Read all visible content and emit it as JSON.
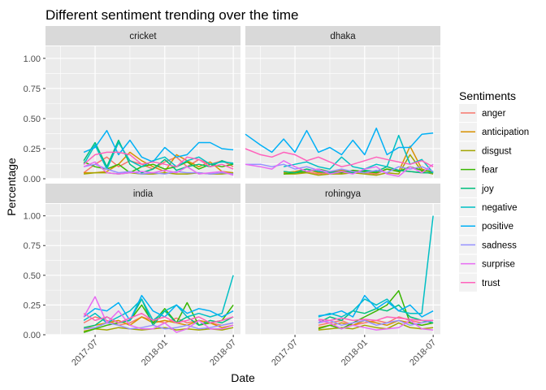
{
  "chart_data": {
    "type": "line",
    "title": "Different sentiment trending over the time",
    "xlabel": "Date",
    "ylabel": "Percentage",
    "legend_title": "Sentiments",
    "legend_position": "right",
    "grid": true,
    "ylim": [
      0,
      1.1
    ],
    "xlim": [
      "2017-02-20",
      "2018-07-20"
    ],
    "x_ticks": [
      "2017-07-01",
      "2018-01-01",
      "2018-07-01"
    ],
    "x_tick_labels": [
      "2017-07",
      "2018-01",
      "2018-07"
    ],
    "y_ticks": [
      0,
      0.25,
      0.5,
      0.75,
      1
    ],
    "y_tick_labels": [
      "0.00",
      "0.25",
      "0.50",
      "0.75",
      "1.00"
    ],
    "series_colors": {
      "anger": "#F8766D",
      "anticipation": "#D89000",
      "disgust": "#A3A500",
      "fear": "#39B600",
      "joy": "#00BF7D",
      "negative": "#00BFC4",
      "positive": "#00B0F6",
      "sadness": "#9590FF",
      "surprise": "#E76BF3",
      "trust": "#FF62BC"
    },
    "facets": [
      {
        "name": "cricket",
        "x": [
          "2017-06-01",
          "2017-07-01",
          "2017-08-01",
          "2017-09-01",
          "2017-10-01",
          "2017-11-01",
          "2017-12-01",
          "2018-01-01",
          "2018-02-01",
          "2018-03-01",
          "2018-04-01",
          "2018-05-01",
          "2018-06-01",
          "2018-07-01"
        ],
        "series": [
          {
            "name": "anger",
            "values": [
              0.05,
              0.12,
              0.18,
              0.1,
              0.15,
              0.12,
              0.08,
              0.14,
              0.18,
              0.1,
              0.16,
              0.12,
              0.15,
              0.1
            ]
          },
          {
            "name": "anticipation",
            "values": [
              0.05,
              0.05,
              0.06,
              0.12,
              0.22,
              0.15,
              0.1,
              0.06,
              0.2,
              0.15,
              0.1,
              0.14,
              0.06,
              0.05
            ]
          },
          {
            "name": "disgust",
            "values": [
              0.04,
              0.05,
              0.05,
              0.04,
              0.05,
              0.04,
              0.04,
              0.05,
              0.04,
              0.04,
              0.05,
              0.04,
              0.04,
              0.05
            ]
          },
          {
            "name": "fear",
            "values": [
              0.14,
              0.1,
              0.08,
              0.12,
              0.05,
              0.1,
              0.12,
              0.08,
              0.1,
              0.14,
              0.08,
              0.12,
              0.1,
              0.12
            ]
          },
          {
            "name": "joy",
            "values": [
              0.15,
              0.3,
              0.1,
              0.32,
              0.12,
              0.05,
              0.08,
              0.16,
              0.07,
              0.1,
              0.12,
              0.1,
              0.15,
              0.12
            ]
          },
          {
            "name": "negative",
            "values": [
              0.12,
              0.28,
              0.08,
              0.3,
              0.15,
              0.1,
              0.15,
              0.18,
              0.1,
              0.15,
              0.18,
              0.12,
              0.14,
              0.13
            ]
          },
          {
            "name": "positive",
            "values": [
              0.22,
              0.26,
              0.4,
              0.2,
              0.32,
              0.18,
              0.14,
              0.26,
              0.18,
              0.2,
              0.3,
              0.3,
              0.25,
              0.24
            ]
          },
          {
            "name": "sadness",
            "values": [
              0.1,
              0.12,
              0.08,
              0.05,
              0.06,
              0.04,
              0.05,
              0.04,
              0.06,
              0.05,
              0.05,
              0.04,
              0.05,
              0.04
            ]
          },
          {
            "name": "surprise",
            "values": [
              0.1,
              0.14,
              0.05,
              0.04,
              0.05,
              0.06,
              0.05,
              0.07,
              0.05,
              0.1,
              0.04,
              0.05,
              0.06,
              0.03
            ]
          },
          {
            "name": "trust",
            "values": [
              0.12,
              0.2,
              0.22,
              0.22,
              0.2,
              0.12,
              0.14,
              0.12,
              0.1,
              0.18,
              0.16,
              0.1,
              0.12,
              0.08
            ]
          }
        ]
      },
      {
        "name": "dhaka",
        "x": [
          "2017-02-20",
          "2017-04-01",
          "2017-05-01",
          "2017-06-01",
          "2017-07-01",
          "2017-08-01",
          "2017-09-01",
          "2017-10-01",
          "2017-11-01",
          "2017-12-01",
          "2018-01-01",
          "2018-02-01",
          "2018-03-01",
          "2018-04-01",
          "2018-05-01",
          "2018-06-01",
          "2018-07-01"
        ],
        "series": [
          {
            "name": "anger",
            "values": [
              null,
              null,
              null,
              0.06,
              0.05,
              0.06,
              0.04,
              0.05,
              0.05,
              0.06,
              0.05,
              0.04,
              0.08,
              0.07,
              0.06,
              0.05,
              0.05
            ]
          },
          {
            "name": "anticipation",
            "values": [
              null,
              null,
              null,
              0.05,
              0.06,
              0.08,
              0.05,
              0.06,
              0.07,
              0.05,
              0.06,
              0.05,
              0.08,
              0.06,
              0.27,
              0.08,
              0.05
            ]
          },
          {
            "name": "disgust",
            "values": [
              null,
              null,
              null,
              0.04,
              0.04,
              0.05,
              0.03,
              0.04,
              0.04,
              0.05,
              0.04,
              0.03,
              0.05,
              0.04,
              0.2,
              0.06,
              0.04
            ]
          },
          {
            "name": "fear",
            "values": [
              null,
              null,
              null,
              0.04,
              0.05,
              0.06,
              0.08,
              0.06,
              0.05,
              0.07,
              0.06,
              0.05,
              0.08,
              0.06,
              0.1,
              0.07,
              0.06
            ]
          },
          {
            "name": "joy",
            "values": [
              null,
              null,
              null,
              0.06,
              0.05,
              0.08,
              0.06,
              0.05,
              0.06,
              0.05,
              0.07,
              0.06,
              0.1,
              0.07,
              0.06,
              0.05,
              0.05
            ]
          },
          {
            "name": "negative",
            "values": [
              null,
              null,
              null,
              0.1,
              0.12,
              0.14,
              0.1,
              0.08,
              0.18,
              0.1,
              0.08,
              0.12,
              0.1,
              0.36,
              0.12,
              0.16,
              0.05
            ]
          },
          {
            "name": "positive",
            "values": [
              0.37,
              0.28,
              0.22,
              0.33,
              0.22,
              0.4,
              0.22,
              0.26,
              0.2,
              0.32,
              0.2,
              0.42,
              0.2,
              0.26,
              0.26,
              0.37,
              0.38
            ]
          },
          {
            "name": "sadness",
            "values": [
              0.12,
              0.12,
              0.1,
              0.12,
              0.08,
              0.1,
              0.07,
              0.06,
              0.08,
              0.06,
              0.05,
              0.07,
              0.05,
              0.1,
              0.08,
              0.1,
              0.06
            ]
          },
          {
            "name": "surprise",
            "values": [
              0.12,
              0.1,
              0.08,
              0.15,
              0.1,
              0.06,
              0.08,
              0.04,
              0.06,
              0.04,
              0.08,
              0.1,
              0.04,
              0.02,
              0.1,
              0.05,
              0.12
            ]
          },
          {
            "name": "trust",
            "values": [
              0.25,
              0.2,
              0.18,
              0.22,
              0.2,
              0.15,
              0.18,
              0.14,
              0.1,
              0.12,
              0.15,
              0.18,
              0.16,
              0.14,
              0.12,
              0.15,
              0.1
            ]
          }
        ]
      },
      {
        "name": "india",
        "x": [
          "2017-06-01",
          "2017-07-01",
          "2017-08-01",
          "2017-09-01",
          "2017-10-01",
          "2017-11-01",
          "2017-12-01",
          "2018-01-01",
          "2018-02-01",
          "2018-03-01",
          "2018-04-01",
          "2018-05-01",
          "2018-06-01",
          "2018-07-01"
        ],
        "series": [
          {
            "name": "anger",
            "values": [
              0.1,
              0.15,
              0.12,
              0.08,
              0.1,
              0.15,
              0.12,
              0.1,
              0.14,
              0.1,
              0.12,
              0.1,
              0.08,
              0.1
            ]
          },
          {
            "name": "anticipation",
            "values": [
              0.05,
              0.08,
              0.1,
              0.12,
              0.08,
              0.15,
              0.1,
              0.12,
              0.1,
              0.08,
              0.12,
              0.1,
              0.06,
              0.08
            ]
          },
          {
            "name": "disgust",
            "values": [
              0.03,
              0.05,
              0.04,
              0.06,
              0.05,
              0.04,
              0.05,
              0.06,
              0.04,
              0.05,
              0.04,
              0.05,
              0.04,
              0.06
            ]
          },
          {
            "name": "fear",
            "values": [
              0.02,
              0.05,
              0.08,
              0.1,
              0.12,
              0.25,
              0.1,
              0.22,
              0.1,
              0.27,
              0.08,
              0.1,
              0.12,
              0.25
            ]
          },
          {
            "name": "joy",
            "values": [
              0.06,
              0.08,
              0.15,
              0.1,
              0.12,
              0.3,
              0.08,
              0.2,
              0.1,
              0.15,
              0.08,
              0.12,
              0.1,
              0.15
            ]
          },
          {
            "name": "negative",
            "values": [
              0.12,
              0.18,
              0.1,
              0.15,
              0.2,
              0.3,
              0.12,
              0.2,
              0.25,
              0.15,
              0.18,
              0.15,
              0.18,
              0.5
            ]
          },
          {
            "name": "positive",
            "values": [
              0.15,
              0.22,
              0.2,
              0.27,
              0.12,
              0.33,
              0.2,
              0.15,
              0.25,
              0.18,
              0.22,
              0.2,
              0.15,
              0.2
            ]
          },
          {
            "name": "sadness",
            "values": [
              0.05,
              0.06,
              0.1,
              0.08,
              0.05,
              0.06,
              0.08,
              0.05,
              0.06,
              0.08,
              0.05,
              0.06,
              0.08,
              0.1
            ]
          },
          {
            "name": "surprise",
            "values": [
              0.15,
              0.32,
              0.1,
              0.2,
              0.08,
              0.05,
              0.05,
              0.1,
              0.02,
              0.05,
              0.12,
              0.05,
              0.05,
              0.08
            ]
          },
          {
            "name": "trust",
            "values": [
              0.18,
              0.12,
              0.15,
              0.1,
              0.14,
              0.18,
              0.12,
              0.15,
              0.1,
              0.12,
              0.15,
              0.1,
              0.12,
              0.15
            ]
          }
        ]
      },
      {
        "name": "rohingya",
        "x": [
          "2017-09-01",
          "2017-10-01",
          "2017-11-01",
          "2017-12-01",
          "2018-01-01",
          "2018-02-01",
          "2018-03-01",
          "2018-04-01",
          "2018-05-01",
          "2018-06-01",
          "2018-07-01"
        ],
        "series": [
          {
            "name": "anger",
            "values": [
              0.08,
              0.1,
              0.12,
              0.08,
              0.1,
              0.12,
              0.1,
              0.15,
              0.12,
              0.1,
              0.12
            ]
          },
          {
            "name": "anticipation",
            "values": [
              0.06,
              0.08,
              0.1,
              0.08,
              0.12,
              0.1,
              0.08,
              0.12,
              0.1,
              0.08,
              0.1
            ]
          },
          {
            "name": "disgust",
            "values": [
              0.04,
              0.05,
              0.06,
              0.05,
              0.08,
              0.06,
              0.05,
              0.1,
              0.06,
              0.05,
              0.06
            ]
          },
          {
            "name": "fear",
            "values": [
              0.05,
              0.08,
              0.05,
              0.1,
              0.15,
              0.2,
              0.25,
              0.37,
              0.1,
              0.08,
              0.1
            ]
          },
          {
            "name": "joy",
            "values": [
              0.1,
              0.15,
              0.12,
              0.2,
              0.18,
              0.22,
              0.2,
              0.25,
              0.15,
              0.12,
              0.1
            ]
          },
          {
            "name": "negative",
            "values": [
              0.15,
              0.18,
              0.15,
              0.2,
              0.3,
              0.25,
              0.3,
              0.2,
              0.18,
              0.18,
              1.0
            ]
          },
          {
            "name": "positive",
            "values": [
              0.16,
              0.17,
              0.2,
              0.15,
              0.33,
              0.22,
              0.28,
              0.2,
              0.25,
              0.15,
              0.2
            ]
          },
          {
            "name": "sadness",
            "values": [
              0.1,
              0.12,
              0.08,
              0.1,
              0.12,
              0.08,
              0.1,
              0.12,
              0.08,
              0.1,
              0.12
            ]
          },
          {
            "name": "surprise",
            "values": [
              0.12,
              0.1,
              0.05,
              0.08,
              0.06,
              0.04,
              0.05,
              0.06,
              0.12,
              0.05,
              0.04
            ]
          },
          {
            "name": "trust",
            "values": [
              0.13,
              0.12,
              0.14,
              0.12,
              0.13,
              0.12,
              0.15,
              0.14,
              0.13,
              0.12,
              0.12
            ]
          }
        ]
      }
    ]
  }
}
